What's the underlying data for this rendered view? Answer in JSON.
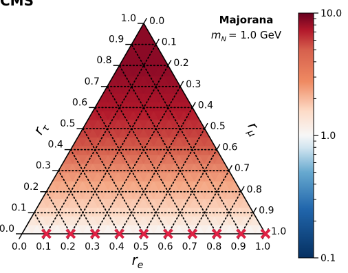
{
  "experiment_label": "CMS",
  "annotation": {
    "line1": "Majorana",
    "line2_symbol": "m",
    "line2_subscript": "N",
    "line2_value": "= 1.0 GeV"
  },
  "chart_data": {
    "type": "heatmap",
    "projection": "ternary",
    "axes": {
      "bottom": {
        "label": "r",
        "label_subscript": "e",
        "range": [
          0.0,
          1.0
        ],
        "ticks": [
          "0.0",
          "0.1",
          "0.2",
          "0.3",
          "0.4",
          "0.5",
          "0.6",
          "0.7",
          "0.8",
          "0.9",
          "1.0"
        ]
      },
      "left": {
        "label": "r",
        "label_subscript": "τ",
        "range": [
          0.0,
          1.0
        ],
        "ticks": [
          "0.0",
          "0.1",
          "0.2",
          "0.3",
          "0.4",
          "0.5",
          "0.6",
          "0.7",
          "0.8",
          "0.9",
          "1.0"
        ]
      },
      "right": {
        "label": "r",
        "label_subscript": "μ",
        "range": [
          0.0,
          1.0
        ],
        "ticks": [
          "0.0",
          "0.1",
          "0.2",
          "0.3",
          "0.4",
          "0.5",
          "0.6",
          "0.7",
          "0.8",
          "0.9",
          "1.0"
        ]
      }
    },
    "colorbar": {
      "scale": "log",
      "range": [
        0.1,
        10.0
      ],
      "ticks": [
        "0.1",
        "1.0",
        "10.0"
      ],
      "colormap": "RdBu_r"
    },
    "grid": true,
    "grid_style": "dotted",
    "color_trend": "value increases with r_tau (toward top vertex); ~10 at top, ~1 near r_tau = 0",
    "excluded_points": {
      "marker": "x",
      "color": "#dd2244",
      "r_tau": 0.0,
      "r_e": [
        0.1,
        0.2,
        0.3,
        0.4,
        0.5,
        0.6,
        0.7,
        0.8,
        0.9,
        1.0
      ]
    }
  }
}
